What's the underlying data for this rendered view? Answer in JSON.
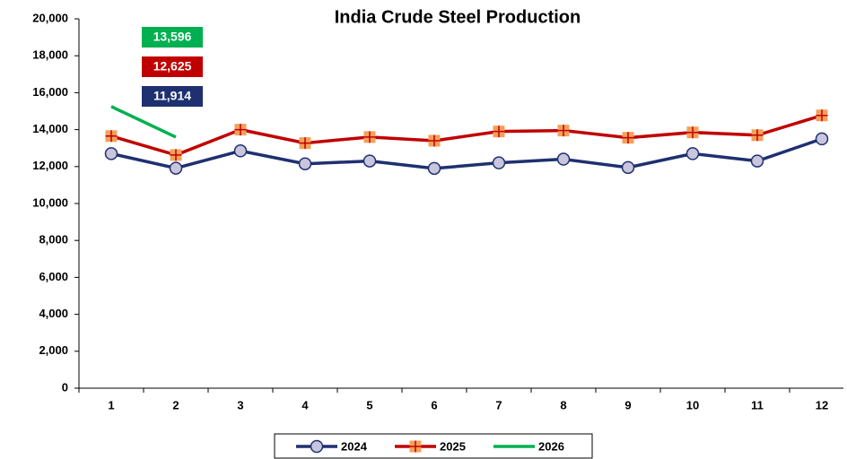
{
  "chart_data": {
    "type": "line",
    "title": "India Crude Steel Production",
    "categories": [
      "1",
      "2",
      "3",
      "4",
      "5",
      "6",
      "7",
      "8",
      "9",
      "10",
      "11",
      "12"
    ],
    "series": [
      {
        "name": "2024",
        "color": "#1f3070",
        "marker": "circle",
        "marker_fill": "#c9c5dd",
        "values": [
          12700,
          11914,
          12850,
          12150,
          12300,
          11900,
          12200,
          12400,
          11950,
          12700,
          12300,
          13500
        ],
        "value_labels": [
          null,
          "11,914",
          null,
          null,
          null,
          null,
          null,
          null,
          null,
          null,
          null,
          null
        ]
      },
      {
        "name": "2025",
        "color": "#c00000",
        "marker": "plus-square",
        "marker_fill": "#f5a05a",
        "values": [
          13650,
          12625,
          14000,
          13270,
          13600,
          13400,
          13900,
          13950,
          13560,
          13850,
          13700,
          14770
        ],
        "value_labels": [
          null,
          "12,625",
          null,
          null,
          null,
          null,
          null,
          null,
          null,
          null,
          null,
          null
        ]
      },
      {
        "name": "2026",
        "color": "#00b050",
        "marker": "none",
        "values": [
          15250,
          13596,
          null,
          null,
          null,
          null,
          null,
          null,
          null,
          null,
          null,
          null
        ],
        "value_labels": [
          null,
          "13,596",
          null,
          null,
          null,
          null,
          null,
          null,
          null,
          null,
          null,
          null
        ]
      }
    ],
    "ylim": [
      0,
      20000
    ],
    "yticks": [
      0,
      {
        "value": 2000,
        "label": "2,000"
      },
      {
        "value": 4000,
        "label": "4,000"
      },
      {
        "value": 6000,
        "label": "6,000"
      },
      {
        "value": 8000,
        "label": "8,000"
      },
      {
        "value": 10000,
        "label": "10,000"
      },
      {
        "value": 12000,
        "label": "12,000"
      },
      {
        "value": 14000,
        "label": "14,000"
      },
      {
        "value": 16000,
        "label": "16,000"
      },
      {
        "value": 18000,
        "label": "18,000"
      },
      {
        "value": 20000,
        "label": "20,000"
      }
    ],
    "grid": false,
    "legend": "bottom"
  }
}
